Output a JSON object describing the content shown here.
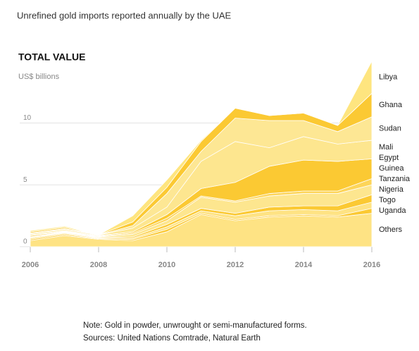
{
  "chart_data": {
    "type": "stacked-area",
    "subtitle": "Unrefined gold imports reported annually by the UAE",
    "title": "TOTAL VALUE",
    "y_label": "US$ billions",
    "x": [
      2006,
      2007,
      2008,
      2009,
      2010,
      2011,
      2012,
      2013,
      2014,
      2015,
      2016
    ],
    "xlim": [
      2006,
      2016
    ],
    "xticks": [
      2006,
      2008,
      2010,
      2012,
      2014,
      2016
    ],
    "ylim": [
      0,
      15.5
    ],
    "yticks": [
      0,
      5,
      10
    ],
    "grid": true,
    "series": [
      {
        "name": "Others",
        "color": "#fee384",
        "values": [
          0.5,
          0.9,
          0.6,
          0.5,
          1.2,
          2.6,
          2.1,
          2.4,
          2.5,
          2.4,
          2.7
        ]
      },
      {
        "name": "Uganda",
        "color": "#fbc933",
        "values": [
          0.1,
          0.1,
          0.05,
          0.1,
          0.2,
          0.1,
          0.1,
          0.1,
          0.1,
          0.1,
          0.4
        ]
      },
      {
        "name": "Togo",
        "color": "#fee384",
        "values": [
          0.1,
          0.1,
          0.05,
          0.1,
          0.2,
          0.2,
          0.3,
          0.4,
          0.4,
          0.4,
          0.5
        ]
      },
      {
        "name": "Nigeria",
        "color": "#fbc933",
        "values": [
          0.05,
          0.05,
          0.05,
          0.1,
          0.2,
          0.2,
          0.2,
          0.3,
          0.3,
          0.4,
          0.6
        ]
      },
      {
        "name": "Tanzania",
        "color": "#fde68f",
        "values": [
          0.05,
          0.05,
          0.05,
          0.2,
          0.3,
          0.9,
          0.9,
          0.9,
          1.0,
          1.0,
          0.8
        ]
      },
      {
        "name": "Guinea",
        "color": "#fdd55a",
        "values": [
          0.1,
          0.05,
          0.05,
          0.1,
          0.2,
          0.1,
          0.1,
          0.2,
          0.2,
          0.2,
          0.5
        ]
      },
      {
        "name": "Egypt",
        "color": "#fbc933",
        "values": [
          0.05,
          0.05,
          0.05,
          0.1,
          0.3,
          0.6,
          1.5,
          2.2,
          2.5,
          2.4,
          1.6
        ]
      },
      {
        "name": "Mali",
        "color": "#fde68f",
        "values": [
          0.1,
          0.1,
          0.05,
          0.3,
          0.6,
          2.2,
          3.3,
          1.5,
          1.9,
          1.4,
          1.5
        ]
      },
      {
        "name": "Sudan",
        "color": "#fde794",
        "values": [
          0.05,
          0.05,
          0,
          0.2,
          1.1,
          0.8,
          1.9,
          2.2,
          1.3,
          1.0,
          1.9
        ]
      },
      {
        "name": "Ghana",
        "color": "#fbc933",
        "values": [
          0.1,
          0.1,
          0,
          0.3,
          0.5,
          0.8,
          0.8,
          0.4,
          0.6,
          0.5,
          1.9
        ]
      },
      {
        "name": "Libya",
        "color": "#fee57f",
        "values": [
          0.1,
          0.1,
          0,
          0.5,
          0.6,
          0.1,
          0,
          0,
          0,
          0,
          2.6
        ]
      }
    ],
    "notes": [
      "Note: Gold in powder, unwrought or semi-manufactured forms.",
      "Sources: United Nations Comtrade, Natural Earth"
    ]
  }
}
